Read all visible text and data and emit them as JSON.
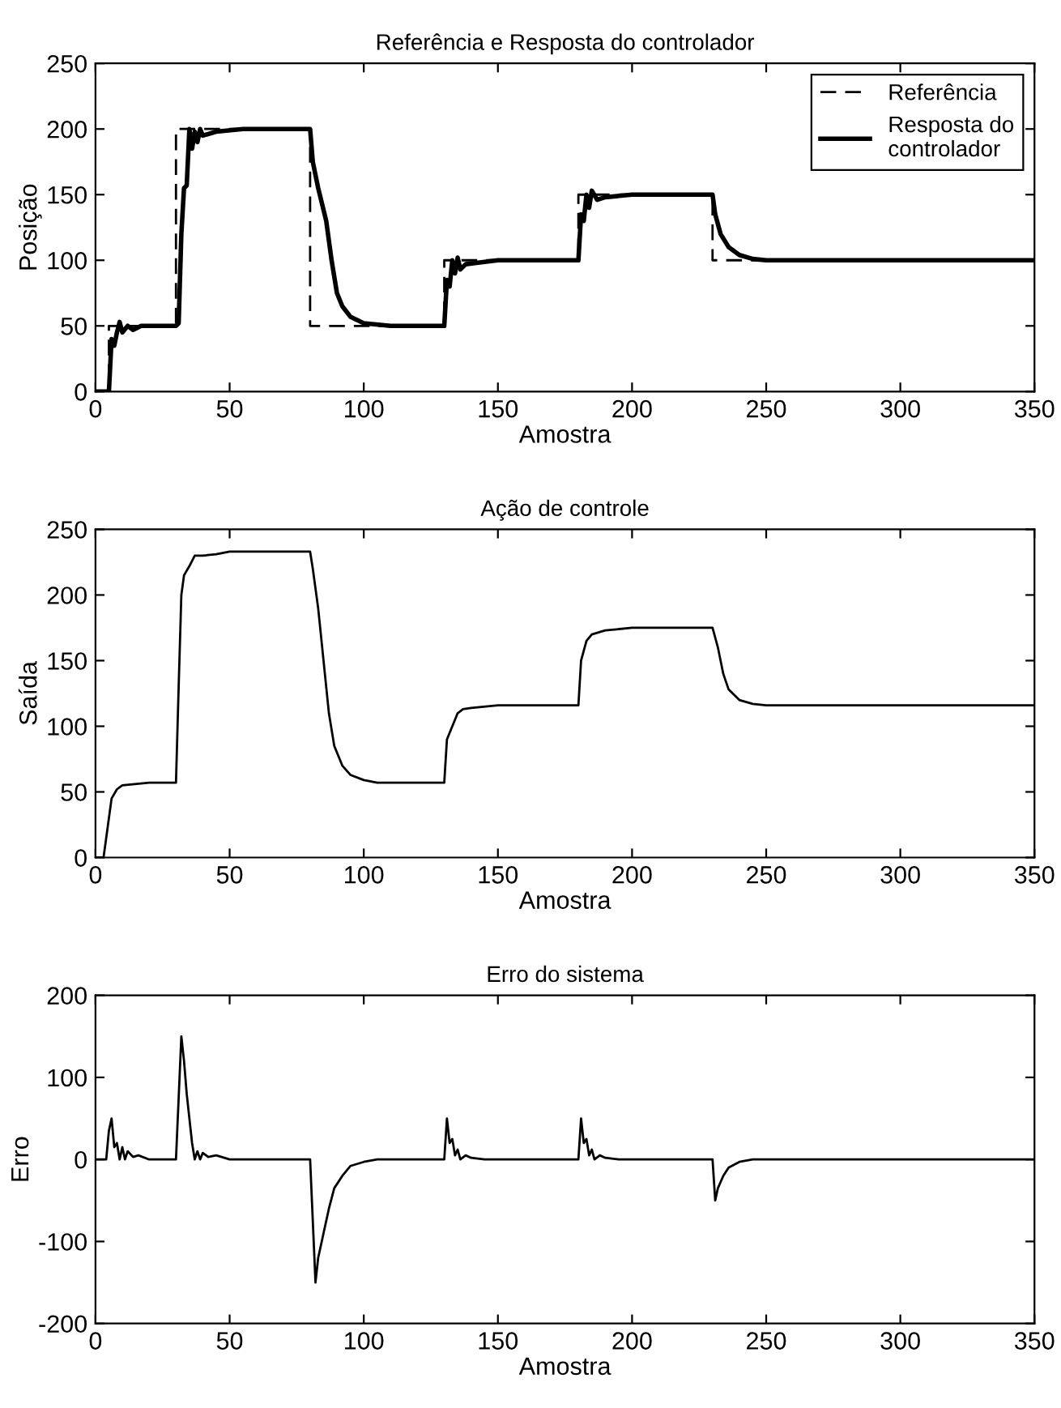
{
  "chart_data": [
    {
      "type": "line",
      "title": "Referência e Resposta do controlador",
      "xlabel": "Amostra",
      "ylabel": "Posição",
      "xlim": [
        0,
        350
      ],
      "ylim": [
        0,
        250
      ],
      "xticks": [
        0,
        50,
        100,
        150,
        200,
        250,
        300,
        350
      ],
      "yticks": [
        0,
        50,
        100,
        150,
        200,
        250
      ],
      "grid": false,
      "legend": "top right",
      "series": [
        {
          "name": "Referência",
          "color": "#000000",
          "line_style": "dashed",
          "x": [
            0,
            5,
            5,
            30,
            30,
            80,
            80,
            130,
            130,
            180,
            180,
            230,
            230,
            350
          ],
          "values": [
            0,
            0,
            50,
            50,
            200,
            200,
            50,
            50,
            100,
            100,
            150,
            150,
            100,
            100
          ]
        },
        {
          "name": "Resposta do controlador",
          "color": "#000000",
          "line_style": "solid",
          "x": [
            0,
            5,
            6,
            7,
            8,
            9,
            10,
            12,
            14,
            17,
            20,
            30,
            31,
            32,
            33,
            34,
            35,
            36,
            37,
            38,
            39,
            40,
            45,
            55,
            80,
            81,
            83,
            86,
            88,
            90,
            92,
            95,
            100,
            110,
            130,
            131,
            132,
            133,
            134,
            135,
            136,
            138,
            142,
            150,
            180,
            181,
            182,
            183,
            184,
            185,
            187,
            190,
            200,
            230,
            231,
            233,
            236,
            240,
            245,
            250,
            350
          ],
          "values": [
            0,
            0,
            40,
            35,
            45,
            53,
            45,
            50,
            47,
            50,
            50,
            50,
            52,
            120,
            155,
            157,
            200,
            185,
            198,
            190,
            200,
            195,
            198,
            200,
            200,
            175,
            155,
            130,
            100,
            75,
            65,
            57,
            52,
            50,
            50,
            85,
            80,
            100,
            90,
            102,
            93,
            97,
            98,
            100,
            100,
            135,
            130,
            150,
            140,
            153,
            146,
            148,
            150,
            150,
            135,
            120,
            110,
            104,
            101,
            100,
            100
          ]
        }
      ]
    },
    {
      "type": "line",
      "title": "Ação de controle",
      "xlabel": "Amostra",
      "ylabel": "Saída",
      "xlim": [
        0,
        350
      ],
      "ylim": [
        0,
        250
      ],
      "xticks": [
        0,
        50,
        100,
        150,
        200,
        250,
        300,
        350
      ],
      "yticks": [
        0,
        50,
        100,
        150,
        200,
        250
      ],
      "grid": false,
      "series": [
        {
          "color": "#000000",
          "line_style": "solid",
          "x": [
            0,
            3,
            4,
            6,
            8,
            10,
            20,
            30,
            31,
            32,
            33,
            35,
            37,
            40,
            45,
            50,
            80,
            81,
            83,
            85,
            87,
            89,
            92,
            95,
            100,
            105,
            130,
            131,
            133,
            135,
            137,
            140,
            150,
            180,
            181,
            183,
            185,
            190,
            200,
            230,
            232,
            234,
            236,
            240,
            245,
            250,
            350
          ],
          "values": [
            0,
            0,
            15,
            45,
            52,
            55,
            57,
            57,
            130,
            200,
            215,
            222,
            230,
            230,
            231,
            233,
            233,
            220,
            190,
            150,
            110,
            85,
            70,
            63,
            59,
            57,
            57,
            90,
            100,
            110,
            113,
            114,
            116,
            116,
            150,
            165,
            170,
            173,
            175,
            175,
            160,
            140,
            128,
            120,
            117,
            116,
            116
          ]
        }
      ]
    },
    {
      "type": "line",
      "title": "Erro do sistema",
      "xlabel": "Amostra",
      "ylabel": "Erro",
      "xlim": [
        0,
        350
      ],
      "ylim": [
        -200,
        200
      ],
      "xticks": [
        0,
        50,
        100,
        150,
        200,
        250,
        300,
        350
      ],
      "yticks": [
        -200,
        -100,
        0,
        100,
        200
      ],
      "grid": false,
      "series": [
        {
          "color": "#000000",
          "line_style": "solid",
          "x": [
            0,
            4,
            5,
            6,
            7,
            8,
            9,
            10,
            11,
            12,
            14,
            16,
            20,
            30,
            31,
            32,
            33,
            34,
            35,
            36,
            37,
            38,
            39,
            40,
            42,
            45,
            50,
            80,
            81,
            82,
            83,
            85,
            87,
            89,
            92,
            95,
            100,
            105,
            130,
            131,
            132,
            133,
            134,
            135,
            136,
            138,
            140,
            145,
            180,
            181,
            182,
            183,
            184,
            185,
            186,
            188,
            190,
            195,
            230,
            231,
            232,
            234,
            236,
            240,
            245,
            350
          ],
          "values": [
            0,
            0,
            35,
            50,
            15,
            20,
            0,
            15,
            0,
            10,
            3,
            5,
            0,
            0,
            75,
            150,
            120,
            80,
            50,
            20,
            0,
            10,
            0,
            8,
            3,
            5,
            0,
            0,
            -75,
            -150,
            -120,
            -90,
            -60,
            -35,
            -20,
            -8,
            -3,
            0,
            0,
            50,
            20,
            25,
            5,
            12,
            0,
            5,
            2,
            0,
            0,
            50,
            20,
            25,
            5,
            12,
            0,
            5,
            2,
            0,
            0,
            -50,
            -35,
            -20,
            -10,
            -3,
            0,
            0
          ]
        }
      ]
    }
  ]
}
